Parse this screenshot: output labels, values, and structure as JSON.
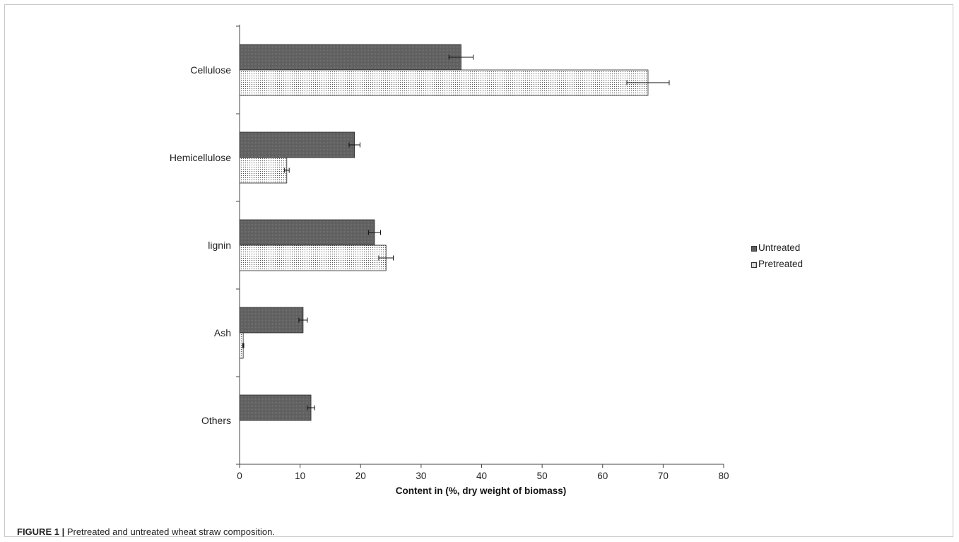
{
  "chart_data": {
    "type": "bar",
    "orientation": "horizontal",
    "categories": [
      "Cellulose",
      "Hemicellulose",
      "lignin",
      "Ash",
      "Others"
    ],
    "series": [
      {
        "name": "Untreated",
        "values": [
          36.6,
          19.0,
          22.3,
          10.5,
          11.8
        ],
        "errors": [
          2.0,
          0.9,
          1.0,
          0.7,
          0.6
        ],
        "fill": "solid-dark",
        "color": "#5f5f5f"
      },
      {
        "name": "Pretreated",
        "values": [
          67.5,
          7.8,
          24.2,
          0.6,
          null
        ],
        "errors": [
          3.5,
          0.4,
          1.2,
          0.1,
          null
        ],
        "fill": "dotted",
        "color": "#777777"
      }
    ],
    "xlabel": "Content in (%, dry weight of biomass)",
    "xlim": [
      0,
      80
    ],
    "xticks": [
      0,
      10,
      20,
      30,
      40,
      50,
      60,
      70,
      80
    ],
    "grid": false,
    "legend_position": "right"
  },
  "caption": {
    "label": "FIGURE 1 |",
    "text": "Pretreated and untreated wheat straw composition."
  }
}
